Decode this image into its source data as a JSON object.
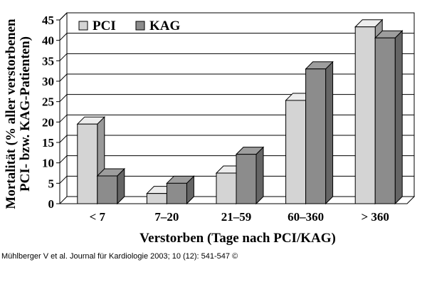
{
  "chart_data": {
    "type": "bar",
    "categories": [
      "< 7",
      "7–20",
      "21–59",
      "60–360",
      "> 360"
    ],
    "series": [
      {
        "name": "PCI",
        "values": [
          19.5,
          2.5,
          7.5,
          25.3,
          43.3
        ],
        "color": "#d4d4d4"
      },
      {
        "name": "KAG",
        "values": [
          6.8,
          5.0,
          12.1,
          33.0,
          40.6
        ],
        "color": "#8c8c8c"
      }
    ],
    "xlabel": "Verstorben (Tage nach PCI/KAG)",
    "ylabel_line1": "Mortalität (% aller verstorbenen",
    "ylabel_line2": "PCI- bzw. KAG-Patienten)",
    "ylim": [
      0,
      45
    ],
    "yticks": [
      0,
      5,
      10,
      15,
      20,
      25,
      30,
      35,
      40,
      45
    ],
    "grid": true,
    "legend_position": "top-left",
    "style": "3d-bars"
  },
  "source": "Mühlberger V et al. Journal für Kardiologie 2003; 10 (12): 541-547 ©"
}
